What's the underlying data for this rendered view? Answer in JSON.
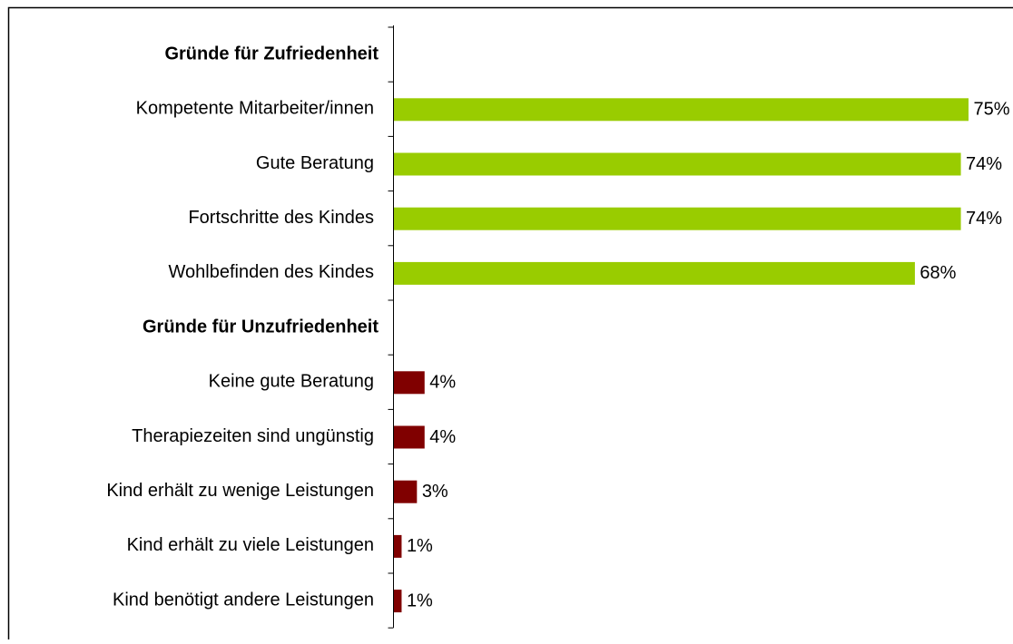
{
  "chart_data": {
    "type": "bar",
    "orientation": "horizontal",
    "categories": [
      "Gründe für Zufriedenheit",
      "Kompetente Mitarbeiter/innen",
      "Gute Beratung",
      "Fortschritte des Kindes",
      "Wohlbefinden des Kindes",
      "Gründe für Unzufriedenheit",
      "Keine gute Beratung",
      "Therapiezeiten sind ungünstig",
      "Kind erhält zu wenige Leistungen",
      "Kind erhält zu viele Leistungen",
      "Kind benötigt andere Leistungen"
    ],
    "values": [
      null,
      75,
      74,
      74,
      68,
      null,
      4,
      4,
      3,
      1,
      1
    ],
    "value_labels": [
      null,
      "75%",
      "74%",
      "74%",
      "68%",
      null,
      "4%",
      "4%",
      "3%",
      "1%",
      "1%"
    ],
    "colors": [
      null,
      "#99cc00",
      "#99cc00",
      "#99cc00",
      "#99cc00",
      null,
      "#800000",
      "#800000",
      "#800000",
      "#800000",
      "#800000"
    ]
  }
}
